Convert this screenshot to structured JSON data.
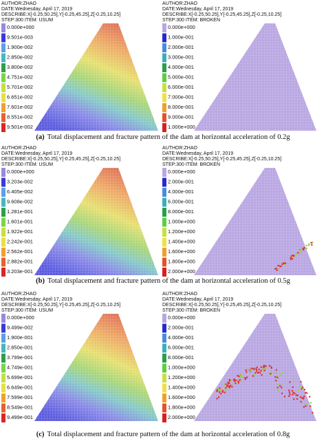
{
  "panels": [
    {
      "caption": {
        "label": "(a)",
        "text": "Total displacement and fracture pattern of the dam at horizontal acceleration of 0.2g"
      },
      "left": {
        "header": [
          "AUTHOR:ZHAO",
          "DATE:Wednesday, April 17, 2019",
          "DESCRIBE:X[-0.25,50.25],Y[-0.25,45.25],Z[-0.25,10.25]",
          "STEP:300 ITEM: USUM"
        ],
        "legend": [
          "0.000e+000",
          "9.501e-003",
          "1.900e-002",
          "2.850e-002",
          "3.800e-002",
          "4.751e-002",
          "5.701e-002",
          "6.651e-002",
          "7.601e-002",
          "8.551e-002",
          "9.501e-002"
        ]
      },
      "right": {
        "header": [
          "AUTHOR:ZHAO",
          "DATE:Wednesday, April 17, 2019",
          "DESCRIBE:X[-0.25,50.25],Y[-0.25,45.25],Z[-0.25,10.25]",
          "STEP:300 ITEM: BROKEN"
        ],
        "legend": [
          "0.000e+000",
          "1.000e-001",
          "2.000e-001",
          "3.000e-001",
          "4.000e-001",
          "5.000e-001",
          "6.000e-001",
          "7.000e-001",
          "8.000e-001",
          "9.000e-001",
          "1.000e+000"
        ]
      }
    },
    {
      "caption": {
        "label": "(b)",
        "text": "Total displacement and fracture pattern of the dam at horizontal acceleration of 0.5g"
      },
      "left": {
        "header": [
          "AUTHOR:ZHAO",
          "DATE:Wednesday, April 17, 2019",
          "DESCRIBE:X[-0.25,50.25],Y[-0.25,45.25],Z[-0.25,10.25]",
          "STEP:300 ITEM: USUM"
        ],
        "legend": [
          "0.000e+000",
          "3.203e-002",
          "6.405e-002",
          "9.608e-002",
          "1.281e-001",
          "1.601e-001",
          "1.922e-001",
          "2.242e-001",
          "2.562e-001",
          "2.882e-001",
          "3.203e-001"
        ]
      },
      "right": {
        "header": [
          "AUTHOR:ZHAO",
          "DATE:Wednesday, April 17, 2019",
          "DESCRIBE:X[-0.25,50.25],Y[-0.25,45.25],Z[-0.25,10.25]",
          "STEP:300 ITEM: BROKEN"
        ],
        "legend": [
          "0.000e+000",
          "2.000e-001",
          "4.000e-001",
          "6.000e-001",
          "8.000e-001",
          "1.000e+000",
          "1.200e+000",
          "1.400e+000",
          "1.600e+000",
          "1.800e+000",
          "2.000e+000"
        ]
      }
    },
    {
      "caption": {
        "label": "(c)",
        "text": "Total displacement and fracture pattern of the dam at horizontal acceleration of 0.8g"
      },
      "left": {
        "header": [
          "AUTHOR:ZHAO",
          "DATE:Wednesday, April 17, 2019",
          "DESCRIBE:X[-0.25,50.25],Y[-0.25,45.25],Z[-0.25,10.25]",
          "STEP:300 ITEM: USUM"
        ],
        "legend": [
          "0.000e+000",
          "9.499e-002",
          "1.900e-001",
          "2.850e-001",
          "3.799e-001",
          "4.749e-001",
          "5.699e-001",
          "6.649e-001",
          "7.599e-001",
          "8.549e-001",
          "9.499e-001"
        ]
      },
      "right": {
        "header": [
          "AUTHOR:ZHAO",
          "DATE:Wednesday, April 17, 2019",
          "DESCRIBE:X[-0.25,50.25],Y[-0.25,45.25],Z[-0.25,10.25]",
          "STEP:300 ITEM: BROKEN"
        ],
        "legend": [
          "0.000e+000",
          "2.000e-001",
          "4.000e-001",
          "6.000e-001",
          "8.000e-001",
          "1.000e+000",
          "1.200e+000",
          "1.400e+000",
          "1.600e+000",
          "1.800e+000",
          "2.000e+000"
        ]
      }
    }
  ]
}
